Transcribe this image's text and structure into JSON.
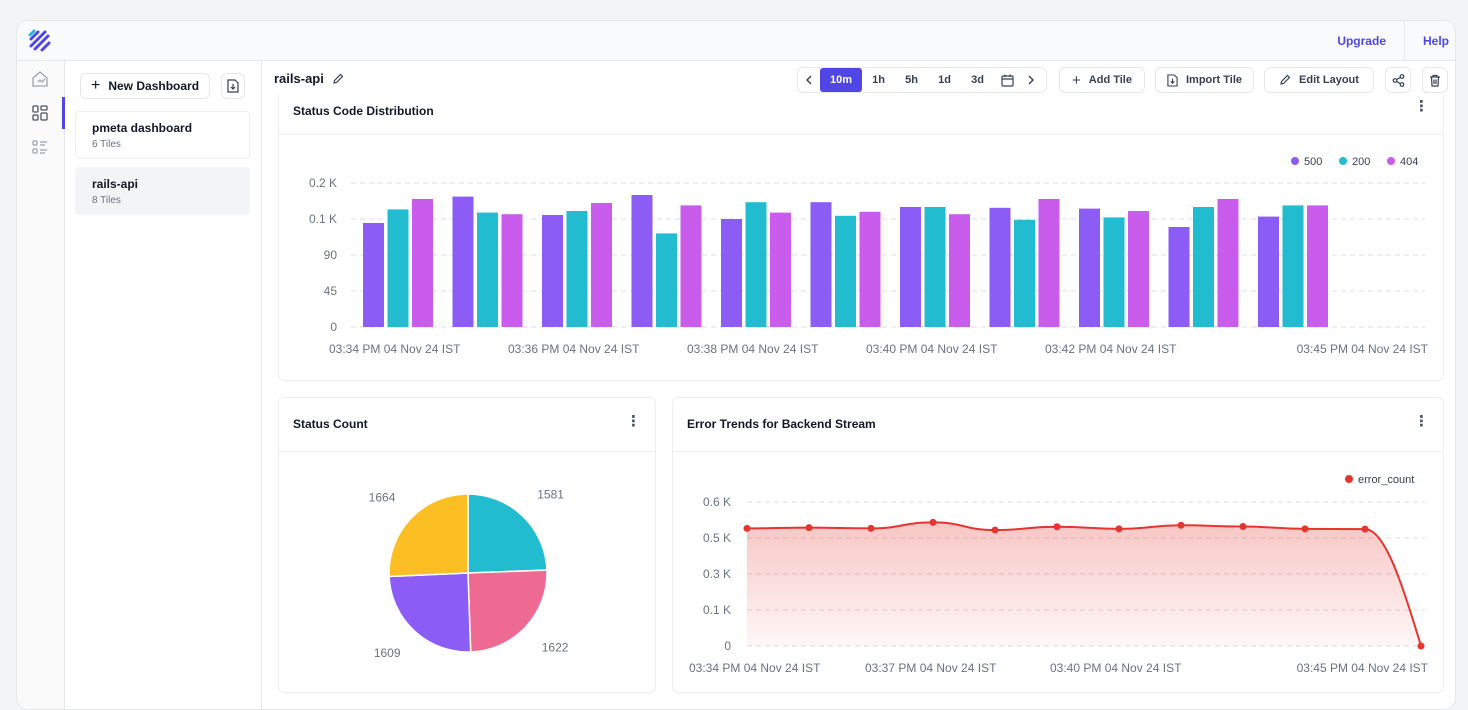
{
  "topbar": {
    "upgrade": "Upgrade",
    "help": "Help"
  },
  "sidebar": {
    "new_dashboard": "New Dashboard",
    "dashboards": [
      {
        "title": "pmeta dashboard",
        "subtitle": "6 Tiles",
        "active": false
      },
      {
        "title": "rails-api",
        "subtitle": "8 Tiles",
        "active": true
      }
    ]
  },
  "toolbar": {
    "title": "rails-api",
    "ranges": [
      "10m",
      "1h",
      "5h",
      "1d",
      "3d"
    ],
    "selected_range": "10m",
    "add_tile": "Add Tile",
    "import_tile": "Import Tile",
    "edit_layout": "Edit Layout"
  },
  "colors": {
    "accent": "#4f46e5",
    "s500": "#8b5cf6",
    "s200": "#22bcd1",
    "s404": "#c95cec",
    "error": "#e5352f"
  },
  "tiles": {
    "status_dist": {
      "title": "Status Code Distribution"
    },
    "status_count": {
      "title": "Status Count"
    },
    "error_trends": {
      "title": "Error Trends for Backend Stream"
    }
  },
  "chart_data": [
    {
      "type": "bar",
      "title": "Status Code Distribution",
      "yticks": [
        "0",
        "45",
        "90",
        "0.1 K",
        "0.2 K"
      ],
      "ylim": [
        0,
        180
      ],
      "xticks": [
        "03:34 PM 04 Nov 24 IST",
        "03:36 PM 04 Nov 24 IST",
        "03:38 PM 04 Nov 24 IST",
        "03:40 PM 04 Nov 24 IST",
        "03:42 PM 04 Nov 24 IST",
        "03:45 PM 04 Nov 24 IST"
      ],
      "legend": [
        "500",
        "200",
        "404"
      ],
      "series": [
        {
          "name": "500",
          "values": [
            130,
            163,
            140,
            165,
            135,
            156,
            150,
            149,
            148,
            125,
            138
          ]
        },
        {
          "name": "200",
          "values": [
            147,
            143,
            145,
            117,
            156,
            139,
            150,
            134,
            137,
            150,
            152
          ]
        },
        {
          "name": "404",
          "values": [
            160,
            141,
            155,
            152,
            143,
            144,
            141,
            160,
            145,
            160,
            152
          ]
        }
      ]
    },
    {
      "type": "pie",
      "title": "Status Count",
      "labels": [
        "1581",
        "1622",
        "1609",
        "1664"
      ],
      "values": [
        1581,
        1622,
        1609,
        1664
      ],
      "colors": [
        "#22bcd1",
        "#ef6a93",
        "#8b5cf6",
        "#fbbf24"
      ]
    },
    {
      "type": "area",
      "title": "Error Trends for Backend Stream",
      "legend": "error_count",
      "yticks": [
        "0",
        "0.1 K",
        "0.3 K",
        "0.5 K",
        "0.6 K"
      ],
      "ylim": [
        0,
        600
      ],
      "xticks": [
        "03:34 PM 04 Nov 24 IST",
        "03:37 PM 04 Nov 24 IST",
        "03:40 PM 04 Nov 24 IST",
        "03:45 PM 04 Nov 24 IST"
      ],
      "values": [
        490,
        493,
        490,
        515,
        483,
        497,
        488,
        503,
        498,
        488,
        487,
        0
      ]
    }
  ]
}
